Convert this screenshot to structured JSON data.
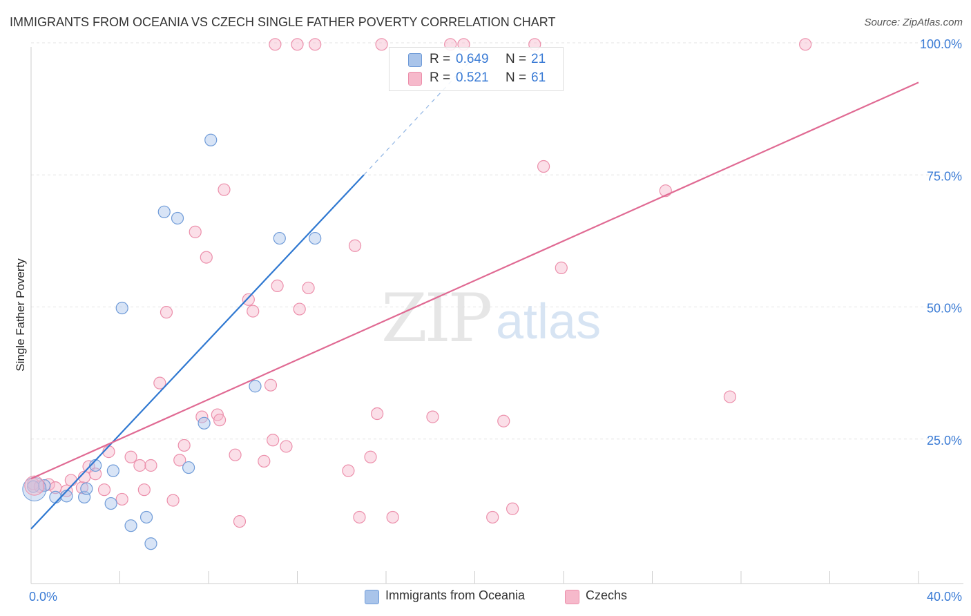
{
  "title": "IMMIGRANTS FROM OCEANIA VS CZECH SINGLE FATHER POVERTY CORRELATION CHART",
  "source": "Source: ZipAtlas.com",
  "watermark": {
    "zip": "ZIP",
    "atlas": "atlas"
  },
  "legend": {
    "r_label": "R =",
    "n_label": "N =",
    "series": [
      {
        "name": "Immigrants from Oceania",
        "r": "0.649",
        "n": "21",
        "color": "#a9c4ea",
        "stroke": "#6f9bd8",
        "line": "#2f78d1"
      },
      {
        "name": "Czechs",
        "r": "0.521",
        "n": "61",
        "color": "#f6b9cb",
        "stroke": "#ec8fab",
        "line": "#e06a93"
      }
    ]
  },
  "chart_data": {
    "type": "scatter",
    "title": "IMMIGRANTS FROM OCEANIA VS CZECH SINGLE FATHER POVERTY CORRELATION CHART",
    "xlabel": "",
    "ylabel": "Single Father Poverty",
    "xlim": [
      0,
      40
    ],
    "ylim": [
      0,
      100
    ],
    "x_tick_labels": [
      "0.0%",
      "40.0%"
    ],
    "y_tick_labels": [
      "25.0%",
      "50.0%",
      "75.0%",
      "100.0%"
    ],
    "y_ticks": [
      25,
      50,
      75,
      100
    ],
    "series": [
      {
        "name": "Immigrants from Oceania",
        "points": [
          [
            0.1,
            16.0
          ],
          [
            0.6,
            16.2
          ],
          [
            1.1,
            14.0
          ],
          [
            1.6,
            14.2
          ],
          [
            2.4,
            14.0
          ],
          [
            2.5,
            15.6
          ],
          [
            2.9,
            20.0
          ],
          [
            3.6,
            12.8
          ],
          [
            3.7,
            19.0
          ],
          [
            4.1,
            49.8
          ],
          [
            4.5,
            8.6
          ],
          [
            5.2,
            10.2
          ],
          [
            5.4,
            5.2
          ],
          [
            6.0,
            68.0
          ],
          [
            6.6,
            66.8
          ],
          [
            7.1,
            19.6
          ],
          [
            7.8,
            28.0
          ],
          [
            8.1,
            81.6
          ],
          [
            10.1,
            35.0
          ],
          [
            11.2,
            63.0
          ],
          [
            12.8,
            63.0
          ]
        ],
        "trend": {
          "x0": 0.0,
          "y0": 8.0,
          "x1": 15.0,
          "y1": 75.0,
          "dash_x1": 20.0,
          "dash_y1": 97.5
        }
      },
      {
        "name": "Czechs",
        "points": [
          [
            0.1,
            16.5
          ],
          [
            0.4,
            16.0
          ],
          [
            0.8,
            16.4
          ],
          [
            1.1,
            15.8
          ],
          [
            1.6,
            15.2
          ],
          [
            1.8,
            17.2
          ],
          [
            2.3,
            15.8
          ],
          [
            2.4,
            17.8
          ],
          [
            2.6,
            19.8
          ],
          [
            2.9,
            18.4
          ],
          [
            3.3,
            15.4
          ],
          [
            3.5,
            22.6
          ],
          [
            4.1,
            13.6
          ],
          [
            4.5,
            21.6
          ],
          [
            4.9,
            20.0
          ],
          [
            5.1,
            15.4
          ],
          [
            5.4,
            20.0
          ],
          [
            5.8,
            35.6
          ],
          [
            6.1,
            49.0
          ],
          [
            6.4,
            13.4
          ],
          [
            6.7,
            21.0
          ],
          [
            6.9,
            23.8
          ],
          [
            7.4,
            64.2
          ],
          [
            7.7,
            29.2
          ],
          [
            7.9,
            59.4
          ],
          [
            8.4,
            29.6
          ],
          [
            8.5,
            28.6
          ],
          [
            8.7,
            72.2
          ],
          [
            9.2,
            22.0
          ],
          [
            9.4,
            9.4
          ],
          [
            9.8,
            51.4
          ],
          [
            10.0,
            49.2
          ],
          [
            10.5,
            20.8
          ],
          [
            10.8,
            35.2
          ],
          [
            10.9,
            24.8
          ],
          [
            11.1,
            54.0
          ],
          [
            11.5,
            23.6
          ],
          [
            12.1,
            49.6
          ],
          [
            12.5,
            53.6
          ],
          [
            12.8,
            99.7
          ],
          [
            14.3,
            19.0
          ],
          [
            14.6,
            61.6
          ],
          [
            14.8,
            10.2
          ],
          [
            15.3,
            21.6
          ],
          [
            15.6,
            29.8
          ],
          [
            15.8,
            99.7
          ],
          [
            16.3,
            10.2
          ],
          [
            18.1,
            29.2
          ],
          [
            18.9,
            99.7
          ],
          [
            19.5,
            99.7
          ],
          [
            20.8,
            10.2
          ],
          [
            21.3,
            28.4
          ],
          [
            21.7,
            11.8
          ],
          [
            22.7,
            99.7
          ],
          [
            23.1,
            76.6
          ],
          [
            23.9,
            57.4
          ],
          [
            28.6,
            72.0
          ],
          [
            31.5,
            33.0
          ],
          [
            34.9,
            99.7
          ],
          [
            11.0,
            99.7
          ],
          [
            12.0,
            99.7
          ]
        ],
        "trend": {
          "x0": 0.0,
          "y0": 17.5,
          "x1": 40.0,
          "y1": 92.5
        }
      }
    ],
    "grid": true,
    "legend_position": "top-center"
  }
}
